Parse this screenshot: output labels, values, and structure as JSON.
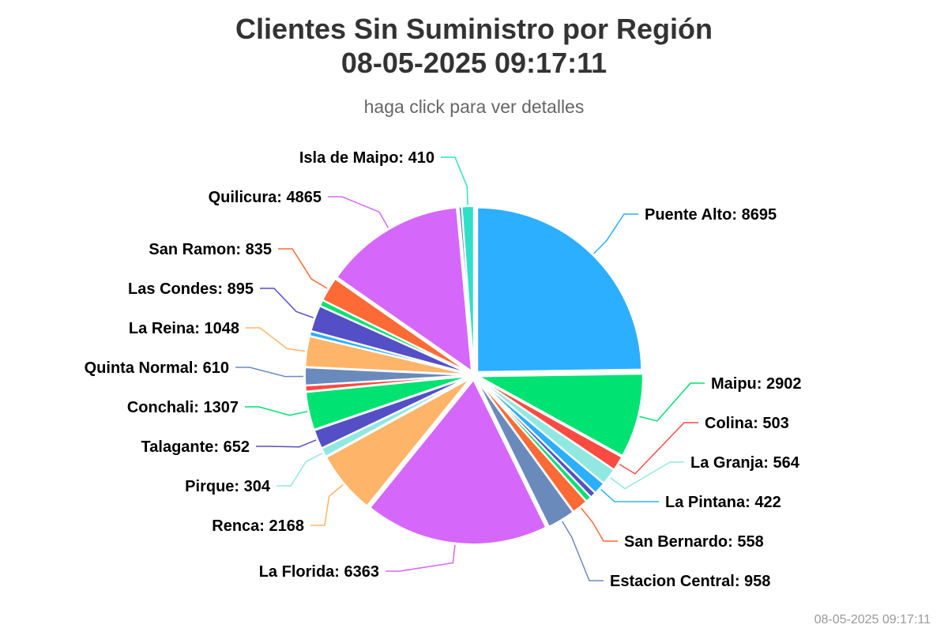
{
  "header": {
    "title_line1": "Clientes Sin Suministro por Región",
    "title_line2": "08-05-2025 09:17:11",
    "subtitle": "haga click para ver detalles"
  },
  "footer": {
    "timestamp": "08-05-2025 09:17:11"
  },
  "chart_data": {
    "type": "pie",
    "title": "Clientes Sin Suministro por Región",
    "subtitle": "haga click para ver detalles",
    "slices": [
      {
        "name": "Puente Alto",
        "value": 8695,
        "color": "#2caffe"
      },
      {
        "name": "Maipu",
        "value": 2902,
        "color": "#00e272"
      },
      {
        "name": "Colina",
        "value": 503,
        "color": "#fa4b42"
      },
      {
        "name": "La Granja",
        "value": 564,
        "color": "#91e8e1"
      },
      {
        "name": "La Pintana",
        "value": 422,
        "color": "#2caffe"
      },
      {
        "name": "",
        "value": 200,
        "color": "#544fc5"
      },
      {
        "name": "",
        "value": 200,
        "color": "#00e272"
      },
      {
        "name": "San Bernardo",
        "value": 558,
        "color": "#fe6a35"
      },
      {
        "name": "Estacion Central",
        "value": 958,
        "color": "#6b8abc"
      },
      {
        "name": "La Florida",
        "value": 6363,
        "color": "#d568fb"
      },
      {
        "name": "Renca",
        "value": 2168,
        "color": "#feb56a"
      },
      {
        "name": "Pirque",
        "value": 304,
        "color": "#91e8e1"
      },
      {
        "name": "Talagante",
        "value": 652,
        "color": "#544fc5"
      },
      {
        "name": "Conchali",
        "value": 1307,
        "color": "#00e272"
      },
      {
        "name": "",
        "value": 200,
        "color": "#fa4b42"
      },
      {
        "name": "Quinta Normal",
        "value": 610,
        "color": "#6b8abc"
      },
      {
        "name": "La Reina",
        "value": 1048,
        "color": "#feb56a"
      },
      {
        "name": "",
        "value": 160,
        "color": "#2caffe"
      },
      {
        "name": "Las Condes",
        "value": 895,
        "color": "#544fc5"
      },
      {
        "name": "",
        "value": 200,
        "color": "#00e272"
      },
      {
        "name": "San Ramon",
        "value": 835,
        "color": "#fe6a35"
      },
      {
        "name": "Quilicura",
        "value": 4865,
        "color": "#d568fb"
      },
      {
        "name": "",
        "value": 100,
        "color": "#6b8abc"
      },
      {
        "name": "Isla de Maipo",
        "value": 410,
        "color": "#2ee0ca"
      }
    ]
  }
}
